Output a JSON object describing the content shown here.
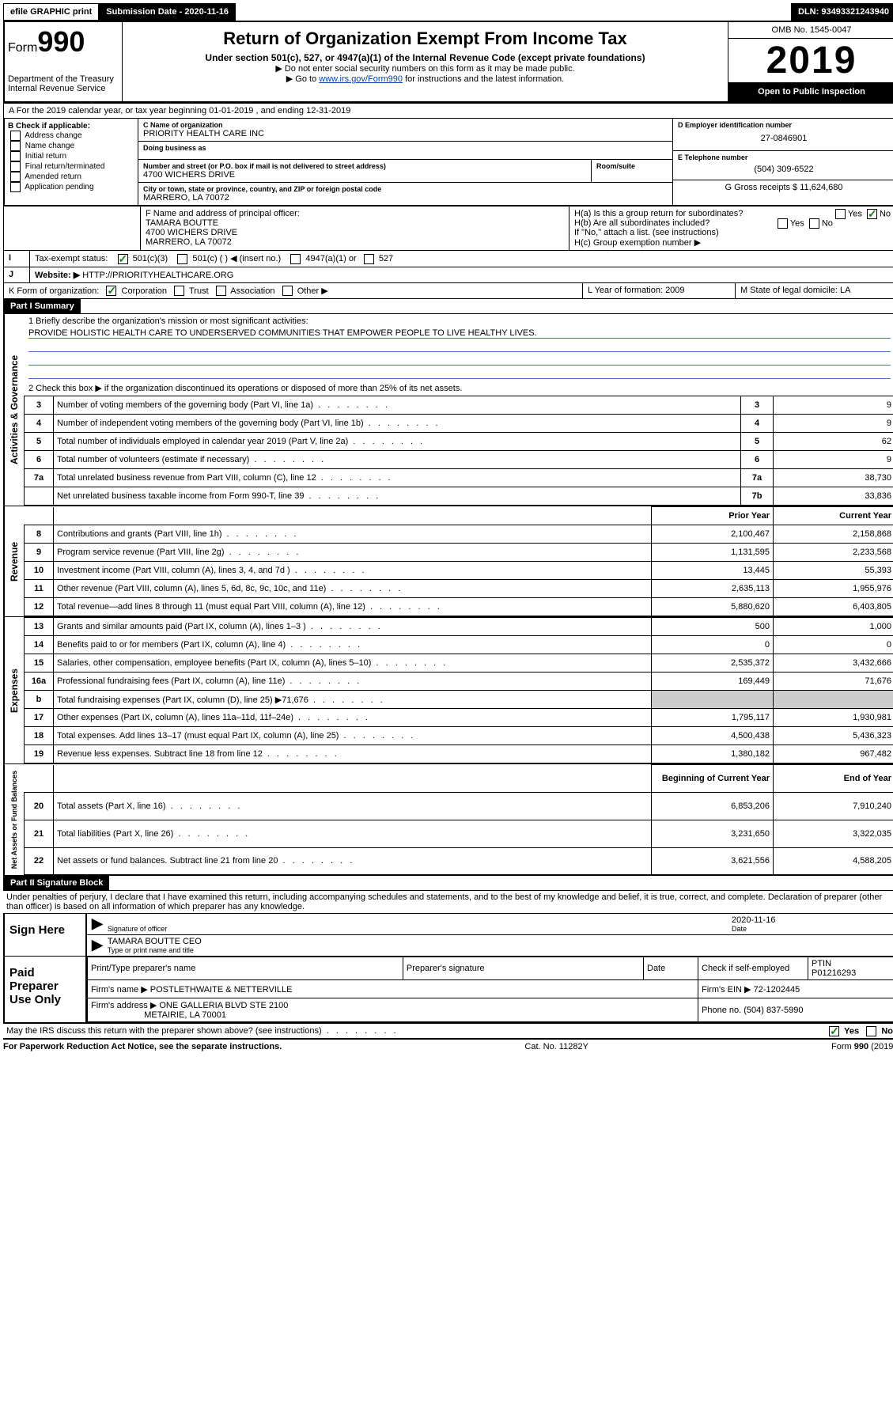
{
  "top": {
    "efile": "efile GRAPHIC print",
    "subdate_label": "Submission Date - 2020-11-16",
    "dln_label": "DLN: 93493321243940"
  },
  "hdr": {
    "form_prefix": "Form",
    "form_no": "990",
    "dept1": "Department of the Treasury",
    "dept2": "Internal Revenue Service",
    "title": "Return of Organization Exempt From Income Tax",
    "subtitle": "Under section 501(c), 527, or 4947(a)(1) of the Internal Revenue Code (except private foundations)",
    "note1": "▶ Do not enter social security numbers on this form as it may be made public.",
    "note2_a": "▶ Go to ",
    "note2_link": "www.irs.gov/Form990",
    "note2_b": " for instructions and the latest information.",
    "omb": "OMB No. 1545-0047",
    "year": "2019",
    "open": "Open to Public Inspection"
  },
  "period": "A For the 2019 calendar year, or tax year beginning 01-01-2019     , and ending 12-31-2019",
  "B": {
    "label": "B Check if applicable:",
    "items": [
      "Address change",
      "Name change",
      "Initial return",
      "Final return/terminated",
      "Amended return",
      "Application pending"
    ]
  },
  "C": {
    "name_label": "C Name of organization",
    "name": "PRIORITY HEALTH CARE INC",
    "dba_label": "Doing business as",
    "dba": "",
    "addr_label": "Number and street (or P.O. box if mail is not delivered to street address)",
    "addr": "4700 WICHERS DRIVE",
    "room_label": "Room/suite",
    "city_label": "City or town, state or province, country, and ZIP or foreign postal code",
    "city": "MARRERO, LA  70072"
  },
  "D": {
    "label": "D Employer identification number",
    "val": "27-0846901"
  },
  "E": {
    "label": "E Telephone number",
    "val": "(504) 309-6522"
  },
  "G": {
    "label": "G Gross receipts $",
    "val": "11,624,680"
  },
  "F": {
    "label": "F  Name and address of principal officer:",
    "name": "TAMARA BOUTTE",
    "addr1": "4700 WICHERS DRIVE",
    "addr2": "MARRERO, LA  70072"
  },
  "H": {
    "a": "H(a)  Is this a group return for subordinates?",
    "b": "H(b)  Are all subordinates included?",
    "b_note": "If \"No,\" attach a list. (see instructions)",
    "c": "H(c)  Group exemption number ▶",
    "yes": "Yes",
    "no": "No"
  },
  "I": {
    "label": "Tax-exempt status:",
    "opts": [
      "501(c)(3)",
      "501(c) (   ) ◀ (insert no.)",
      "4947(a)(1) or",
      "527"
    ]
  },
  "J": {
    "label": "Website: ▶",
    "val": "HTTP://PRIORITYHEALTHCARE.ORG"
  },
  "K": {
    "label": "K Form of organization:",
    "opts": [
      "Corporation",
      "Trust",
      "Association",
      "Other ▶"
    ]
  },
  "L": {
    "label": "L Year of formation:",
    "val": "2009"
  },
  "M": {
    "label": "M State of legal domicile:",
    "val": "LA"
  },
  "part1": {
    "title": "Part I     Summary",
    "q1": "1  Briefly describe the organization's mission or most significant activities:",
    "mission": "PROVIDE HOLISTIC HEALTH CARE TO UNDERSERVED COMMUNITIES THAT EMPOWER PEOPLE TO LIVE HEALTHY LIVES.",
    "q2": "2   Check this box ▶       if the organization discontinued its operations or disposed of more than 25% of its net assets.",
    "vg": "Activities & Governance",
    "vr": "Revenue",
    "ve": "Expenses",
    "vn": "Net Assets or Fund Balances",
    "rows_top": [
      {
        "n": "3",
        "t": "Number of voting members of the governing body (Part VI, line 1a)",
        "r": "3",
        "v": "9"
      },
      {
        "n": "4",
        "t": "Number of independent voting members of the governing body (Part VI, line 1b)",
        "r": "4",
        "v": "9"
      },
      {
        "n": "5",
        "t": "Total number of individuals employed in calendar year 2019 (Part V, line 2a)",
        "r": "5",
        "v": "62"
      },
      {
        "n": "6",
        "t": "Total number of volunteers (estimate if necessary)",
        "r": "6",
        "v": "9"
      },
      {
        "n": "7a",
        "t": "Total unrelated business revenue from Part VIII, column (C), line 12",
        "r": "7a",
        "v": "38,730"
      },
      {
        "n": "",
        "t": "Net unrelated business taxable income from Form 990-T, line 39",
        "r": "7b",
        "v": "33,836"
      }
    ],
    "col_prior": "Prior Year",
    "col_curr": "Current Year",
    "col_beg": "Beginning of Current Year",
    "col_end": "End of Year",
    "rows_rev": [
      {
        "n": "8",
        "t": "Contributions and grants (Part VIII, line 1h)",
        "p": "2,100,467",
        "c": "2,158,868"
      },
      {
        "n": "9",
        "t": "Program service revenue (Part VIII, line 2g)",
        "p": "1,131,595",
        "c": "2,233,568"
      },
      {
        "n": "10",
        "t": "Investment income (Part VIII, column (A), lines 3, 4, and 7d )",
        "p": "13,445",
        "c": "55,393"
      },
      {
        "n": "11",
        "t": "Other revenue (Part VIII, column (A), lines 5, 6d, 8c, 9c, 10c, and 11e)",
        "p": "2,635,113",
        "c": "1,955,976"
      },
      {
        "n": "12",
        "t": "Total revenue—add lines 8 through 11 (must equal Part VIII, column (A), line 12)",
        "p": "5,880,620",
        "c": "6,403,805"
      }
    ],
    "rows_exp": [
      {
        "n": "13",
        "t": "Grants and similar amounts paid (Part IX, column (A), lines 1–3 )",
        "p": "500",
        "c": "1,000"
      },
      {
        "n": "14",
        "t": "Benefits paid to or for members (Part IX, column (A), line 4)",
        "p": "0",
        "c": "0"
      },
      {
        "n": "15",
        "t": "Salaries, other compensation, employee benefits (Part IX, column (A), lines 5–10)",
        "p": "2,535,372",
        "c": "3,432,666"
      },
      {
        "n": "16a",
        "t": "Professional fundraising fees (Part IX, column (A), line 11e)",
        "p": "169,449",
        "c": "71,676"
      },
      {
        "n": "b",
        "t": "Total fundraising expenses (Part IX, column (D), line 25) ▶71,676",
        "p": "",
        "c": ""
      },
      {
        "n": "17",
        "t": "Other expenses (Part IX, column (A), lines 11a–11d, 11f–24e)",
        "p": "1,795,117",
        "c": "1,930,981"
      },
      {
        "n": "18",
        "t": "Total expenses. Add lines 13–17 (must equal Part IX, column (A), line 25)",
        "p": "4,500,438",
        "c": "5,436,323"
      },
      {
        "n": "19",
        "t": "Revenue less expenses. Subtract line 18 from line 12",
        "p": "1,380,182",
        "c": "967,482"
      }
    ],
    "rows_net": [
      {
        "n": "20",
        "t": "Total assets (Part X, line 16)",
        "p": "6,853,206",
        "c": "7,910,240"
      },
      {
        "n": "21",
        "t": "Total liabilities (Part X, line 26)",
        "p": "3,231,650",
        "c": "3,322,035"
      },
      {
        "n": "22",
        "t": "Net assets or fund balances. Subtract line 21 from line 20",
        "p": "3,621,556",
        "c": "4,588,205"
      }
    ]
  },
  "part2": {
    "title": "Part II     Signature Block",
    "decl": "Under penalties of perjury, I declare that I have examined this return, including accompanying schedules and statements, and to the best of my knowledge and belief, it is true, correct, and complete. Declaration of preparer (other than officer) is based on all information of which preparer has any knowledge.",
    "sign_here": "Sign Here",
    "sig_officer": "Signature of officer",
    "date": "2020-11-16",
    "date_label": "Date",
    "officer_name": "TAMARA BOUTTE CEO",
    "officer_label": "Type or print name and title",
    "paid": "Paid Preparer Use Only",
    "prep_name_label": "Print/Type preparer's name",
    "prep_sig_label": "Preparer's signature",
    "check_self": "Check        if self-employed",
    "ptin_label": "PTIN",
    "ptin": "P01216293",
    "firm_name_label": "Firm's name    ▶",
    "firm_name": "POSTLETHWAITE & NETTERVILLE",
    "firm_ein_label": "Firm's EIN ▶",
    "firm_ein": "72-1202445",
    "firm_addr_label": "Firm's address ▶",
    "firm_addr1": "ONE GALLERIA BLVD STE 2100",
    "firm_addr2": "METAIRIE, LA  70001",
    "phone_label": "Phone no.",
    "phone": "(504) 837-5990",
    "discuss": "May the IRS discuss this return with the preparer shown above? (see instructions)",
    "yes": "Yes",
    "no": "No"
  },
  "footer": {
    "left": "For Paperwork Reduction Act Notice, see the separate instructions.",
    "mid": "Cat. No. 11282Y",
    "right": "Form 990 (2019)"
  }
}
